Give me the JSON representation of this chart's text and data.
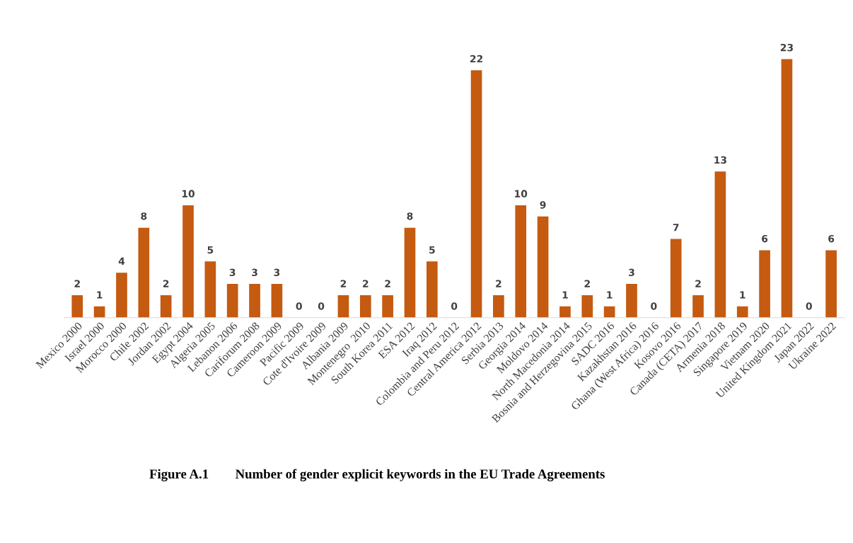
{
  "chart_data": {
    "type": "bar",
    "title": "Figure A.1        Number of gender explicit keywords in the EU Trade Agreements",
    "categories": [
      "Mexico 2000",
      "Israel 2000",
      "Morocco 2000",
      "Chile 2002",
      "Jordan 2002",
      "Egypt 2004",
      "Algeria 2005",
      "Lebanon 2006",
      "Cariforum 2008",
      "Cameroon 2009",
      "Pacific 2009",
      "Cote d'Ivoire 2009",
      "Albania 2009",
      "Montenegro  2010",
      "South Korea 2011",
      "ESA 2012",
      "Iraq 2012",
      "Colombia and Peru 2012",
      "Central America 2012",
      "Serbia 2013",
      "Georgia 2014",
      "Moldovo 2014",
      "North Macedonia 2014",
      "Bosnia and Herzegovina 2015",
      "SADC 2016",
      "Kazakhstan 2016",
      "Ghana (West Africa) 2016",
      "Kosovo 2016",
      "Canada (CETA) 2017",
      "Armenia 2018",
      "Singapore 2019",
      "Vietnam 2020",
      "United Kingdom 2021",
      "Japan 2022",
      "Ukraine 2022"
    ],
    "values": [
      2,
      1,
      4,
      8,
      2,
      10,
      5,
      3,
      3,
      3,
      0,
      0,
      2,
      2,
      2,
      8,
      5,
      0,
      22,
      2,
      10,
      9,
      1,
      2,
      1,
      3,
      0,
      7,
      2,
      13,
      1,
      6,
      23,
      0,
      6
    ],
    "color": "#c55a11",
    "data_labels": true,
    "grid": false,
    "legend": false,
    "tick_labels": "x"
  }
}
